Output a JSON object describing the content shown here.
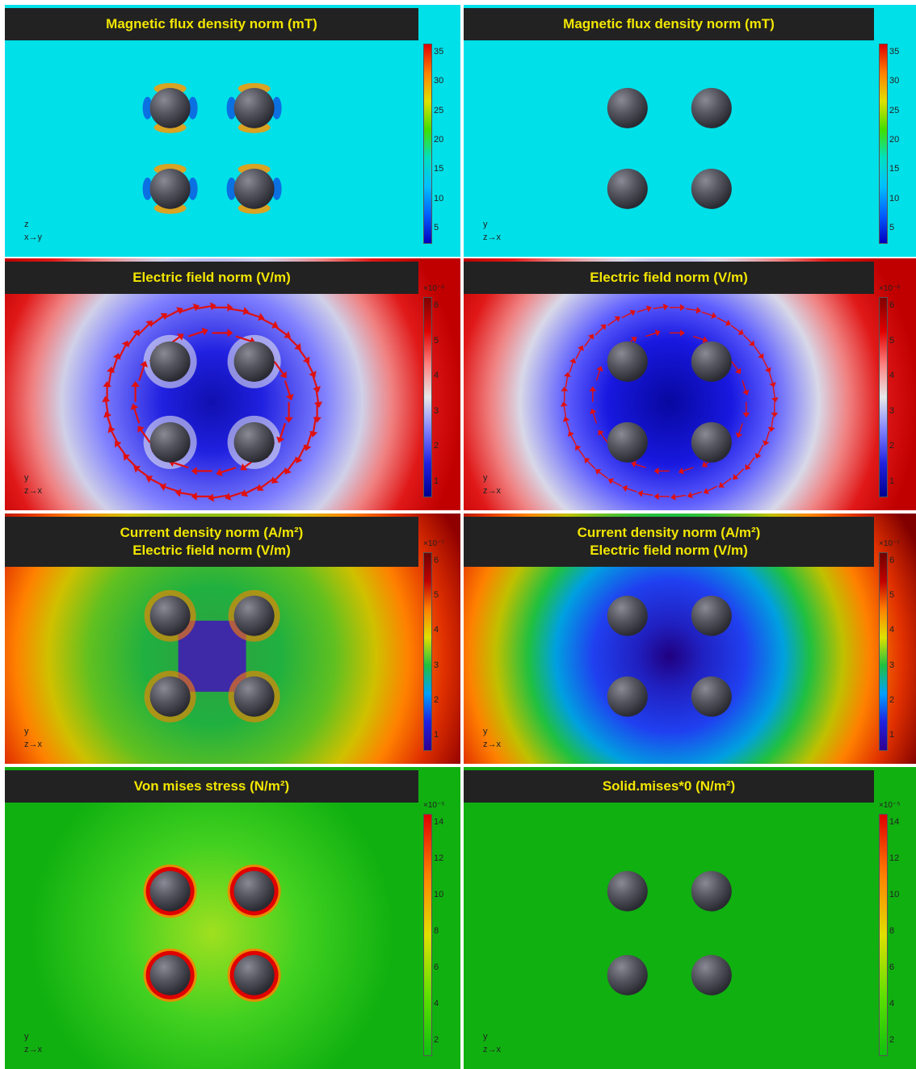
{
  "panels": [
    {
      "id": "r1c1",
      "title": [
        "Magnetic flux density norm (mT)"
      ],
      "style": "magnetic",
      "field": true,
      "axis": {
        "up": "z",
        "right": "x→y"
      },
      "colorbar": {
        "exp": "",
        "ticks": [
          "35",
          "30",
          "25",
          "20",
          "15",
          "10",
          "5"
        ],
        "gradient": "mag"
      }
    },
    {
      "id": "r1c2",
      "title": [
        "Magnetic flux density norm (mT)"
      ],
      "style": "magnetic",
      "field": false,
      "axis": {
        "up": "y",
        "right": "z→x"
      },
      "colorbar": {
        "exp": "",
        "ticks": [
          "35",
          "30",
          "25",
          "20",
          "15",
          "10",
          "5"
        ],
        "gradient": "mag"
      }
    },
    {
      "id": "r2c1",
      "title": [
        "Electric field norm (V/m)"
      ],
      "style": "electric",
      "field": true,
      "axis": {
        "up": "y",
        "right": "z→x"
      },
      "colorbar": {
        "exp": "×10⁻⁶",
        "ticks": [
          "6",
          "5",
          "4",
          "3",
          "2",
          "1"
        ],
        "gradient": "elec"
      }
    },
    {
      "id": "r2c2",
      "title": [
        "Electric field norm (V/m)"
      ],
      "style": "electric",
      "field": false,
      "axis": {
        "up": "y",
        "right": "z→x"
      },
      "colorbar": {
        "exp": "×10⁻⁶",
        "ticks": [
          "6",
          "5",
          "4",
          "3",
          "2",
          "1"
        ],
        "gradient": "elec"
      }
    },
    {
      "id": "r3c1",
      "title": [
        "Current density norm (A/m²)",
        "Electric field norm (V/m)"
      ],
      "style": "current",
      "field": true,
      "axis": {
        "up": "y",
        "right": "z→x"
      },
      "colorbar": {
        "exp": "×10⁻⁷",
        "ticks": [
          "6",
          "5",
          "4",
          "3",
          "2",
          "1"
        ],
        "gradient": "curr"
      }
    },
    {
      "id": "r3c2",
      "title": [
        "Current density norm (A/m²)",
        "Electric field norm (V/m)"
      ],
      "style": "current",
      "field": false,
      "axis": {
        "up": "y",
        "right": "z→x"
      },
      "colorbar": {
        "exp": "×10⁻⁷",
        "ticks": [
          "6",
          "5",
          "4",
          "3",
          "2",
          "1"
        ],
        "gradient": "curr"
      }
    },
    {
      "id": "r4c1",
      "title": [
        "Von mises stress (N/m²)"
      ],
      "style": "stress",
      "field": true,
      "axis": {
        "up": "y",
        "right": "z→x"
      },
      "colorbar": {
        "exp": "×10⁻⁵",
        "ticks": [
          "14",
          "12",
          "10",
          "8",
          "6",
          "4",
          "2"
        ],
        "gradient": "stress"
      }
    },
    {
      "id": "r4c2",
      "title": [
        "Solid.mises*0 (N/m²)"
      ],
      "style": "stress",
      "field": false,
      "axis": {
        "up": "y",
        "right": "z→x"
      },
      "colorbar": {
        "exp": "×10⁻⁵",
        "ticks": [
          "14",
          "12",
          "10",
          "8",
          "6",
          "4",
          "2"
        ],
        "gradient": "stress"
      }
    }
  ],
  "colors": {
    "magnetic_bg": "#00e0e8",
    "electric_outer": "#e01010",
    "electric_inner": "#1010d0",
    "current_center": "#3a10b0",
    "stress_bg": "#10b010",
    "sphere": "#50505c",
    "arrow": "#e01010",
    "title_bg": "#222222",
    "title_text": "#f2e600"
  }
}
